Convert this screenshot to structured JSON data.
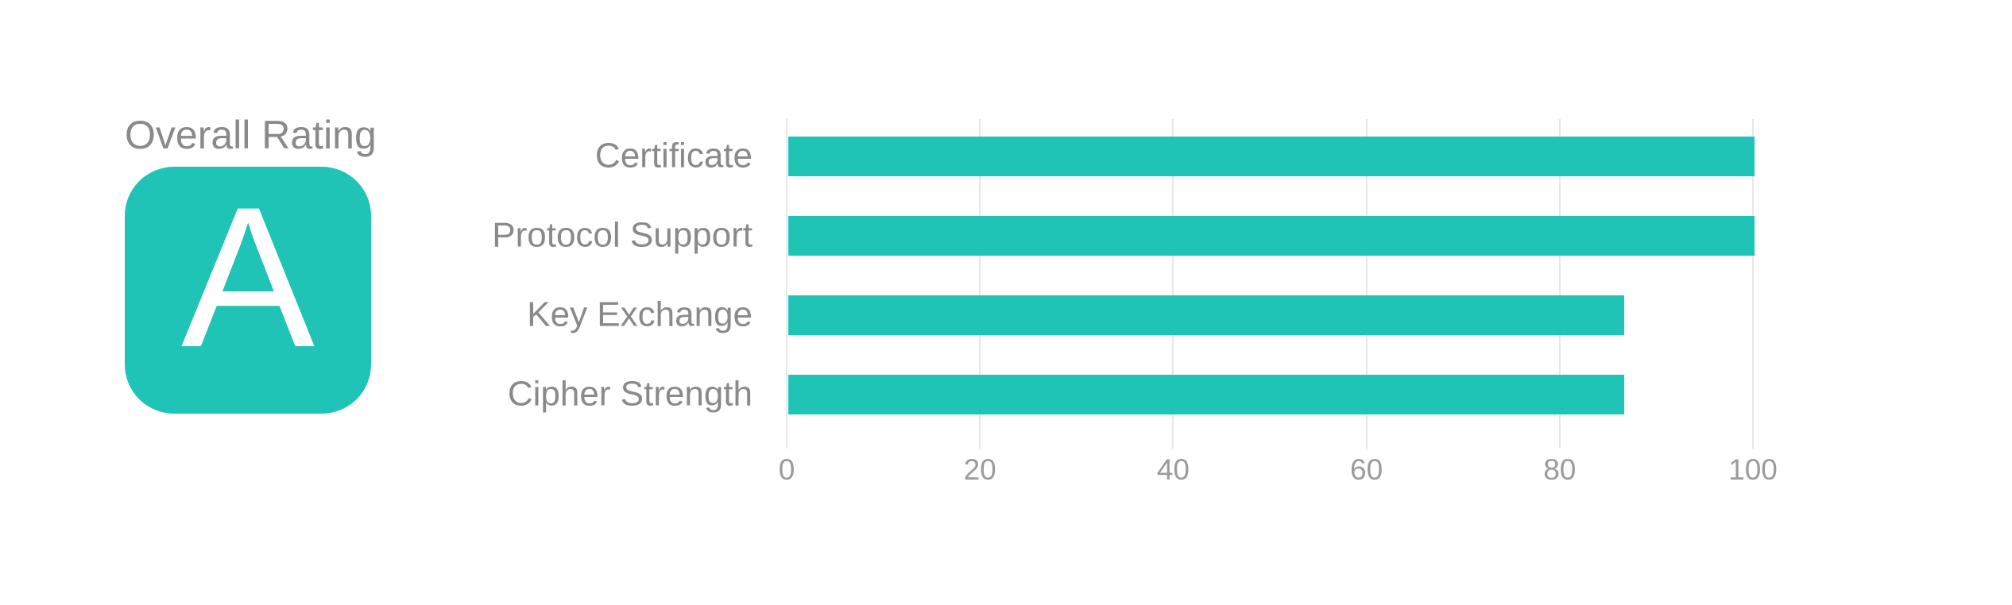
{
  "rating": {
    "title": "Overall Rating",
    "grade": "A"
  },
  "colors": {
    "accent_teal": "#20c4b6",
    "grade_letter_white": "#ffffff",
    "label_gray": "#8a8a8a",
    "tick_gray": "#9b9b9b",
    "gridline_gray": "#e7e7e7",
    "background": "#ffffff"
  },
  "chart_data": {
    "type": "bar",
    "orientation": "horizontal",
    "title": "",
    "xlabel": "",
    "ylabel": "",
    "categories": [
      "Certificate",
      "Protocol Support",
      "Key Exchange",
      "Cipher Strength"
    ],
    "values": [
      100,
      100,
      86.5,
      86.5
    ],
    "xlim": [
      0,
      100
    ],
    "x_ticks": [
      0,
      20,
      40,
      60,
      80,
      100
    ],
    "grid": "vertical-gridlines-on",
    "legend": "none",
    "bar_color": "#20c4b6"
  }
}
